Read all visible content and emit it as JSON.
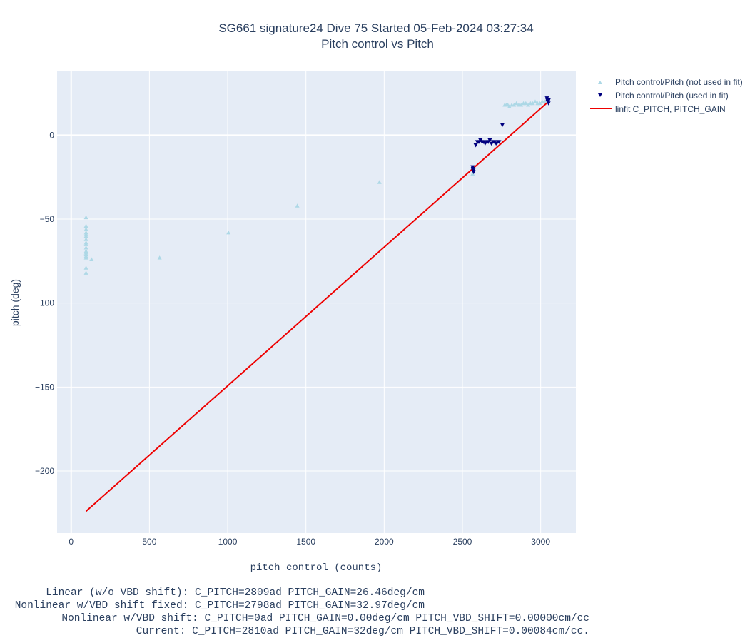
{
  "chart_data": {
    "type": "scatter",
    "title": "SG661 signature24 Dive 75 Started 05-Feb-2024 03:27:34",
    "subtitle": "Pitch control vs Pitch",
    "xlabel": "pitch control (counts)",
    "ylabel": "pitch (deg)",
    "xlim": [
      -90,
      3225
    ],
    "ylim": [
      -237,
      38
    ],
    "xticks": [
      0,
      500,
      1000,
      1500,
      2000,
      2500,
      3000
    ],
    "yticks": [
      0,
      -50,
      -100,
      -150,
      -200
    ],
    "ytick_labels": [
      "0",
      "−50",
      "−100",
      "−150",
      "−200"
    ],
    "grid": true,
    "legend_position": "top-right-outside",
    "series": [
      {
        "name": "Pitch control/Pitch (not used in fit)",
        "marker": "triangle-up",
        "color": "#add8e6",
        "x": [
          95,
          95,
          95,
          95,
          95,
          95,
          95,
          95,
          95,
          95,
          95,
          95,
          95,
          95,
          95,
          95,
          95,
          130,
          565,
          1005,
          1445,
          1970,
          2565,
          2770,
          2780,
          2790,
          2800,
          2815,
          2830,
          2845,
          2860,
          2875,
          2890,
          2905,
          2920,
          2935,
          2950,
          2965,
          2980,
          2995,
          3010,
          3025,
          3040
        ],
        "y": [
          -49,
          -54,
          -56,
          -58,
          -59,
          -62,
          -64,
          -65,
          -67,
          -69,
          -70,
          -71,
          -72,
          -73,
          -79,
          -82,
          -60,
          -74,
          -73,
          -58,
          -42,
          -28,
          -23,
          18,
          18,
          18,
          17,
          18,
          18,
          19,
          18,
          18,
          19,
          19,
          18,
          19,
          19,
          20,
          19,
          19,
          20,
          20,
          21
        ]
      },
      {
        "name": "Pitch control/Pitch (used in fit)",
        "marker": "triangle-down",
        "color": "#00007f",
        "x": [
          2565,
          2567,
          2568,
          2570,
          2572,
          2585,
          2595,
          2605,
          2615,
          2625,
          2635,
          2645,
          2655,
          2665,
          2675,
          2685,
          2695,
          2705,
          2715,
          2725,
          2735,
          2755,
          3040,
          3042,
          3045,
          3047,
          3050,
          3052
        ],
        "y": [
          -19,
          -20,
          -21,
          -21,
          -22,
          -6,
          -4,
          -4,
          -3,
          -4,
          -4,
          -5,
          -4,
          -4,
          -3,
          -5,
          -4,
          -4,
          -5,
          -4,
          -4,
          6,
          22,
          21,
          20,
          20,
          19,
          21
        ]
      },
      {
        "name": "linfit C_PITCH, PITCH_GAIN",
        "marker": "line",
        "color": "#ee0000",
        "x": [
          95,
          3050
        ],
        "y": [
          -224,
          20
        ]
      }
    ]
  },
  "footer": {
    "line1": "Linear (w/o VBD shift): C_PITCH=2809ad PITCH_GAIN=26.46deg/cm",
    "line2": "Nonlinear w/VBD shift fixed: C_PITCH=2798ad PITCH_GAIN=32.97deg/cm",
    "line3": "Nonlinear w/VBD shift: C_PITCH=0ad PITCH_GAIN=0.00deg/cm PITCH_VBD_SHIFT=0.00000cm/cc",
    "line4": "Current: C_PITCH=2810ad PITCH_GAIN=32deg/cm PITCH_VBD_SHIFT=0.00084cm/cc."
  },
  "colors": {
    "plot_bg": "#e5ecf6",
    "grid": "#ffffff",
    "text": "#2a3f5f"
  }
}
